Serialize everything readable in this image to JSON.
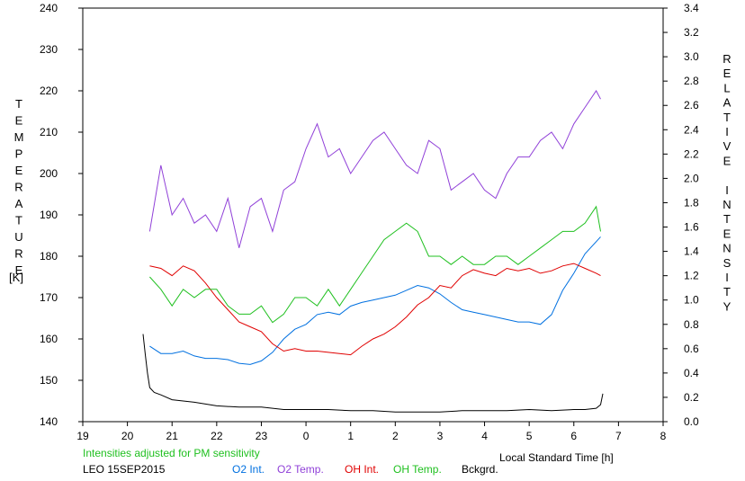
{
  "chart_data": {
    "type": "line",
    "station": "LEO 15SEP2015",
    "note": "Intensities adjusted for PM sensitivity",
    "xlabel": "Local Standard Time [h]",
    "ylabel_left_letters": [
      "T",
      "E",
      "M",
      "P",
      "E",
      "R",
      "A",
      "T",
      "U",
      "R",
      "E"
    ],
    "ylabel_left_unit": "[K]",
    "ylabel_right_letters": [
      "R",
      "E",
      "L",
      "A",
      "T",
      "I",
      "V",
      "E",
      "",
      "I",
      "N",
      "T",
      "E",
      "N",
      "S",
      "I",
      "T",
      "Y"
    ],
    "xlim": [
      19,
      32
    ],
    "x_ticks": [
      19,
      20,
      21,
      22,
      23,
      24,
      25,
      26,
      27,
      28,
      29,
      30,
      31,
      32
    ],
    "x_tick_labels": [
      "19",
      "20",
      "21",
      "22",
      "23",
      "0",
      "1",
      "2",
      "3",
      "4",
      "5",
      "6",
      "7",
      "8"
    ],
    "ylim_left": [
      140,
      240
    ],
    "y_ticks_left": [
      140,
      150,
      160,
      170,
      180,
      190,
      200,
      210,
      220,
      230,
      240
    ],
    "y_tick_labels_left": [
      "140",
      "150",
      "160",
      "170",
      "180",
      "190",
      "200",
      "210",
      "220",
      "230",
      "240"
    ],
    "ylim_right": [
      0,
      3.4
    ],
    "y_ticks_right": [
      0,
      0.2,
      0.4,
      0.6,
      0.8,
      1.0,
      1.2,
      1.4,
      1.6,
      1.8,
      2.0,
      2.2,
      2.4,
      2.6,
      2.8,
      3.0,
      3.2,
      3.4
    ],
    "y_tick_labels_right": [
      "0.0",
      "0.2",
      "0.4",
      "0.6",
      "0.8",
      "1.0",
      "1.2",
      "1.4",
      "1.6",
      "1.8",
      "2.0",
      "2.2",
      "2.4",
      "2.6",
      "2.8",
      "3.0",
      "3.2",
      "3.4"
    ],
    "grid": false,
    "series": [
      {
        "name": "O2 Int.",
        "axis": "right",
        "color": "#0070e0",
        "x": [
          20.5,
          20.75,
          21.0,
          21.25,
          21.5,
          21.75,
          22.0,
          22.25,
          22.5,
          22.75,
          23.0,
          23.25,
          23.5,
          23.75,
          24.0,
          24.25,
          24.5,
          24.75,
          25.0,
          25.25,
          25.5,
          25.75,
          26.0,
          26.25,
          26.5,
          26.75,
          27.0,
          27.25,
          27.5,
          27.75,
          28.0,
          28.25,
          28.5,
          28.75,
          29.0,
          29.25,
          29.5,
          29.75,
          30.0,
          30.25,
          30.5,
          30.6
        ],
        "y": [
          0.62,
          0.56,
          0.56,
          0.58,
          0.54,
          0.52,
          0.52,
          0.51,
          0.48,
          0.47,
          0.5,
          0.57,
          0.68,
          0.76,
          0.8,
          0.88,
          0.9,
          0.88,
          0.95,
          0.98,
          1.0,
          1.02,
          1.04,
          1.08,
          1.12,
          1.1,
          1.05,
          0.98,
          0.92,
          0.9,
          0.88,
          0.86,
          0.84,
          0.82,
          0.82,
          0.8,
          0.88,
          1.08,
          1.22,
          1.38,
          1.48,
          1.52
        ]
      },
      {
        "name": "O2 Temp.",
        "axis": "left",
        "color": "#9040d8",
        "x": [
          20.5,
          20.75,
          21.0,
          21.25,
          21.5,
          21.75,
          22.0,
          22.25,
          22.5,
          22.75,
          23.0,
          23.25,
          23.5,
          23.75,
          24.0,
          24.25,
          24.5,
          24.75,
          25.0,
          25.25,
          25.5,
          25.75,
          26.0,
          26.25,
          26.5,
          26.75,
          27.0,
          27.25,
          27.5,
          27.75,
          28.0,
          28.25,
          28.5,
          28.75,
          29.0,
          29.25,
          29.5,
          29.75,
          30.0,
          30.25,
          30.5,
          30.6
        ],
        "y": [
          186,
          202,
          190,
          194,
          188,
          190,
          186,
          194,
          182,
          192,
          194,
          186,
          196,
          198,
          206,
          212,
          204,
          206,
          200,
          204,
          208,
          210,
          206,
          202,
          200,
          208,
          206,
          196,
          198,
          200,
          196,
          194,
          200,
          204,
          204,
          208,
          210,
          206,
          212,
          216,
          220,
          218
        ]
      },
      {
        "name": "OH Int.",
        "axis": "right",
        "color": "#e00000",
        "x": [
          20.5,
          20.75,
          21.0,
          21.25,
          21.5,
          21.75,
          22.0,
          22.25,
          22.5,
          22.75,
          23.0,
          23.25,
          23.5,
          23.75,
          24.0,
          24.25,
          24.5,
          24.75,
          25.0,
          25.25,
          25.5,
          25.75,
          26.0,
          26.25,
          26.5,
          26.75,
          27.0,
          27.25,
          27.5,
          27.75,
          28.0,
          28.25,
          28.5,
          28.75,
          29.0,
          29.25,
          29.5,
          29.75,
          30.0,
          30.25,
          30.5,
          30.6
        ],
        "y": [
          1.28,
          1.26,
          1.2,
          1.28,
          1.24,
          1.14,
          1.02,
          0.92,
          0.82,
          0.78,
          0.74,
          0.64,
          0.58,
          0.6,
          0.58,
          0.58,
          0.57,
          0.56,
          0.55,
          0.62,
          0.68,
          0.72,
          0.78,
          0.86,
          0.96,
          1.02,
          1.12,
          1.1,
          1.2,
          1.25,
          1.22,
          1.2,
          1.26,
          1.24,
          1.26,
          1.22,
          1.24,
          1.28,
          1.3,
          1.26,
          1.22,
          1.2
        ]
      },
      {
        "name": "OH Temp.",
        "axis": "left",
        "color": "#20c020",
        "x": [
          20.5,
          20.75,
          21.0,
          21.25,
          21.5,
          21.75,
          22.0,
          22.25,
          22.5,
          22.75,
          23.0,
          23.25,
          23.5,
          23.75,
          24.0,
          24.25,
          24.5,
          24.75,
          25.0,
          25.25,
          25.5,
          25.75,
          26.0,
          26.25,
          26.5,
          26.75,
          27.0,
          27.25,
          27.5,
          27.75,
          28.0,
          28.25,
          28.5,
          28.75,
          29.0,
          29.25,
          29.5,
          29.75,
          30.0,
          30.25,
          30.5,
          30.6
        ],
        "y": [
          175,
          172,
          168,
          172,
          170,
          172,
          172,
          168,
          166,
          166,
          168,
          164,
          166,
          170,
          170,
          168,
          172,
          168,
          172,
          176,
          180,
          184,
          186,
          188,
          186,
          180,
          180,
          178,
          180,
          178,
          178,
          180,
          180,
          178,
          180,
          182,
          184,
          186,
          186,
          188,
          192,
          186
        ]
      },
      {
        "name": "Bckgrd.",
        "axis": "right",
        "color": "#000000",
        "x": [
          20.35,
          20.4,
          20.45,
          20.5,
          20.6,
          20.75,
          21.0,
          21.5,
          22.0,
          22.5,
          23.0,
          23.5,
          24.0,
          24.5,
          25.0,
          25.5,
          26.0,
          26.5,
          27.0,
          27.5,
          28.0,
          28.5,
          29.0,
          29.5,
          30.0,
          30.25,
          30.5,
          30.6,
          30.65
        ],
        "y": [
          0.72,
          0.55,
          0.4,
          0.28,
          0.24,
          0.22,
          0.18,
          0.16,
          0.13,
          0.12,
          0.12,
          0.1,
          0.1,
          0.1,
          0.09,
          0.09,
          0.08,
          0.08,
          0.08,
          0.09,
          0.09,
          0.09,
          0.1,
          0.09,
          0.1,
          0.1,
          0.11,
          0.14,
          0.23
        ]
      }
    ]
  },
  "legend": {
    "station_label": "LEO 15SEP2015",
    "note": "Intensities adjusted for PM sensitivity",
    "note_color": "#20c020",
    "items": [
      {
        "label": "O2 Int.",
        "color": "#0070e0"
      },
      {
        "label": "O2 Temp.",
        "color": "#9040d8"
      },
      {
        "label": "OH Int.",
        "color": "#e00000"
      },
      {
        "label": "OH Temp.",
        "color": "#20c020"
      },
      {
        "label": "Bckgrd.",
        "color": "#000000"
      }
    ]
  }
}
